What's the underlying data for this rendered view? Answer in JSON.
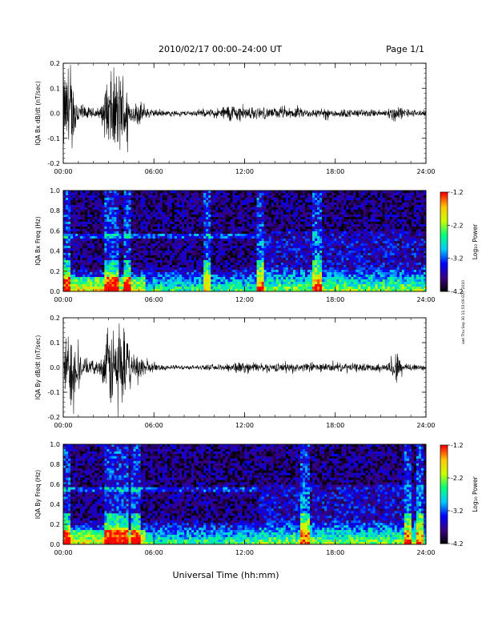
{
  "header": {
    "title": "2010/02/17  00:00–24:00 UT",
    "page": "Page 1/1"
  },
  "side_note": "xwt Thu Sep 30 11:53:09 EDT 2010",
  "xlabel": "Universal Time (hh:mm)",
  "x_ticks": [
    "00:00",
    "06:00",
    "12:00",
    "18:00",
    "24:00"
  ],
  "colorbar": {
    "label": "Log₁₀ Power",
    "ticks": [
      "-1.2",
      "-2.2",
      "-3.2",
      "-4.2"
    ],
    "range": [
      -4.2,
      -1.2
    ],
    "colormap": [
      "#000000",
      "#3b0080",
      "#0000ff",
      "#00c8ff",
      "#00ff80",
      "#c8ff00",
      "#ffc800",
      "#ff0000"
    ]
  },
  "chart_data": [
    {
      "type": "line",
      "ylabel": "IQA Bx dB/dt (nT/sec)",
      "xlim": [
        0,
        24
      ],
      "ylim": [
        -0.2,
        0.2
      ],
      "y_ticks": [
        "0.2",
        "0.1",
        "0.0",
        "-0.1",
        "-0.2"
      ],
      "series": [
        {
          "x": [
            0,
            0.5,
            1,
            1.5,
            2,
            2.5,
            3,
            3.5,
            4,
            4.5,
            5,
            5.5,
            6,
            6.5,
            7,
            7.5,
            8,
            8.5,
            9,
            9.5,
            10,
            10.5,
            11,
            11.5,
            12,
            12.5,
            13,
            13.5,
            14,
            14.5,
            15,
            15.5,
            16,
            16.5,
            17,
            17.5,
            18,
            18.5,
            19,
            19.5,
            20,
            20.5,
            21,
            21.5,
            22,
            22.5,
            23,
            23.5,
            24
          ],
          "amplitude": [
            0.2,
            0.2,
            0.06,
            0.03,
            0.025,
            0.03,
            0.2,
            0.2,
            0.2,
            0.04,
            0.06,
            0.025,
            0.018,
            0.015,
            0.012,
            0.012,
            0.012,
            0.014,
            0.015,
            0.018,
            0.02,
            0.03,
            0.045,
            0.04,
            0.032,
            0.028,
            0.028,
            0.026,
            0.025,
            0.025,
            0.024,
            0.025,
            0.022,
            0.02,
            0.02,
            0.022,
            0.02,
            0.02,
            0.02,
            0.018,
            0.018,
            0.018,
            0.016,
            0.02,
            0.045,
            0.022,
            0.018,
            0.016,
            0.015
          ]
        }
      ]
    },
    {
      "type": "heatmap",
      "ylabel": "IQA Bx Freq (Hz)",
      "xlim": [
        0,
        24
      ],
      "ylim": [
        0.0,
        1.0
      ],
      "y_ticks": [
        "1.0",
        "0.8",
        "0.6",
        "0.4",
        "0.2",
        "0.0"
      ],
      "baseline_power": -3.8,
      "bands": [
        {
          "freq": 0.55,
          "power": -3.0
        }
      ],
      "bursts_hours": [
        0.2,
        3.0,
        3.4,
        4.2,
        9.5,
        13.0,
        16.8
      ]
    },
    {
      "type": "line",
      "ylabel": "IQA By dB/dt (nT/sec)",
      "xlim": [
        0,
        24
      ],
      "ylim": [
        -0.2,
        0.2
      ],
      "y_ticks": [
        "0.2",
        "0.1",
        "0.0",
        "-0.1",
        "-0.2"
      ],
      "series": [
        {
          "x": [
            0,
            0.5,
            1,
            1.5,
            2,
            2.5,
            3,
            3.5,
            4,
            4.5,
            5,
            5.5,
            6,
            6.5,
            7,
            7.5,
            8,
            8.5,
            9,
            9.5,
            10,
            10.5,
            11,
            11.5,
            12,
            12.5,
            13,
            13.5,
            14,
            14.5,
            15,
            15.5,
            16,
            16.5,
            17,
            17.5,
            18,
            18.5,
            19,
            19.5,
            20,
            20.5,
            21,
            21.5,
            22,
            22.5,
            23,
            23.5,
            24
          ],
          "amplitude": [
            0.12,
            0.2,
            0.08,
            0.04,
            0.03,
            0.04,
            0.2,
            0.2,
            0.2,
            0.05,
            0.08,
            0.03,
            0.02,
            0.014,
            0.012,
            0.01,
            0.01,
            0.01,
            0.011,
            0.012,
            0.013,
            0.014,
            0.022,
            0.028,
            0.024,
            0.022,
            0.02,
            0.02,
            0.02,
            0.02,
            0.019,
            0.02,
            0.02,
            0.02,
            0.019,
            0.02,
            0.02,
            0.019,
            0.02,
            0.018,
            0.018,
            0.018,
            0.018,
            0.02,
            0.09,
            0.02,
            0.02,
            0.018,
            0.016
          ]
        }
      ]
    },
    {
      "type": "heatmap",
      "ylabel": "IQA By Freq (Hz)",
      "xlim": [
        0,
        24
      ],
      "ylim": [
        0.0,
        1.0
      ],
      "y_ticks": [
        "1.0",
        "0.8",
        "0.6",
        "0.4",
        "0.2",
        "0.0"
      ],
      "baseline_power": -3.8,
      "bands": [
        {
          "freq": 0.55,
          "power": -3.0
        }
      ],
      "bursts_hours": [
        0.2,
        3.0,
        3.4,
        4.0,
        4.8,
        16.0,
        22.8,
        23.6
      ]
    }
  ]
}
